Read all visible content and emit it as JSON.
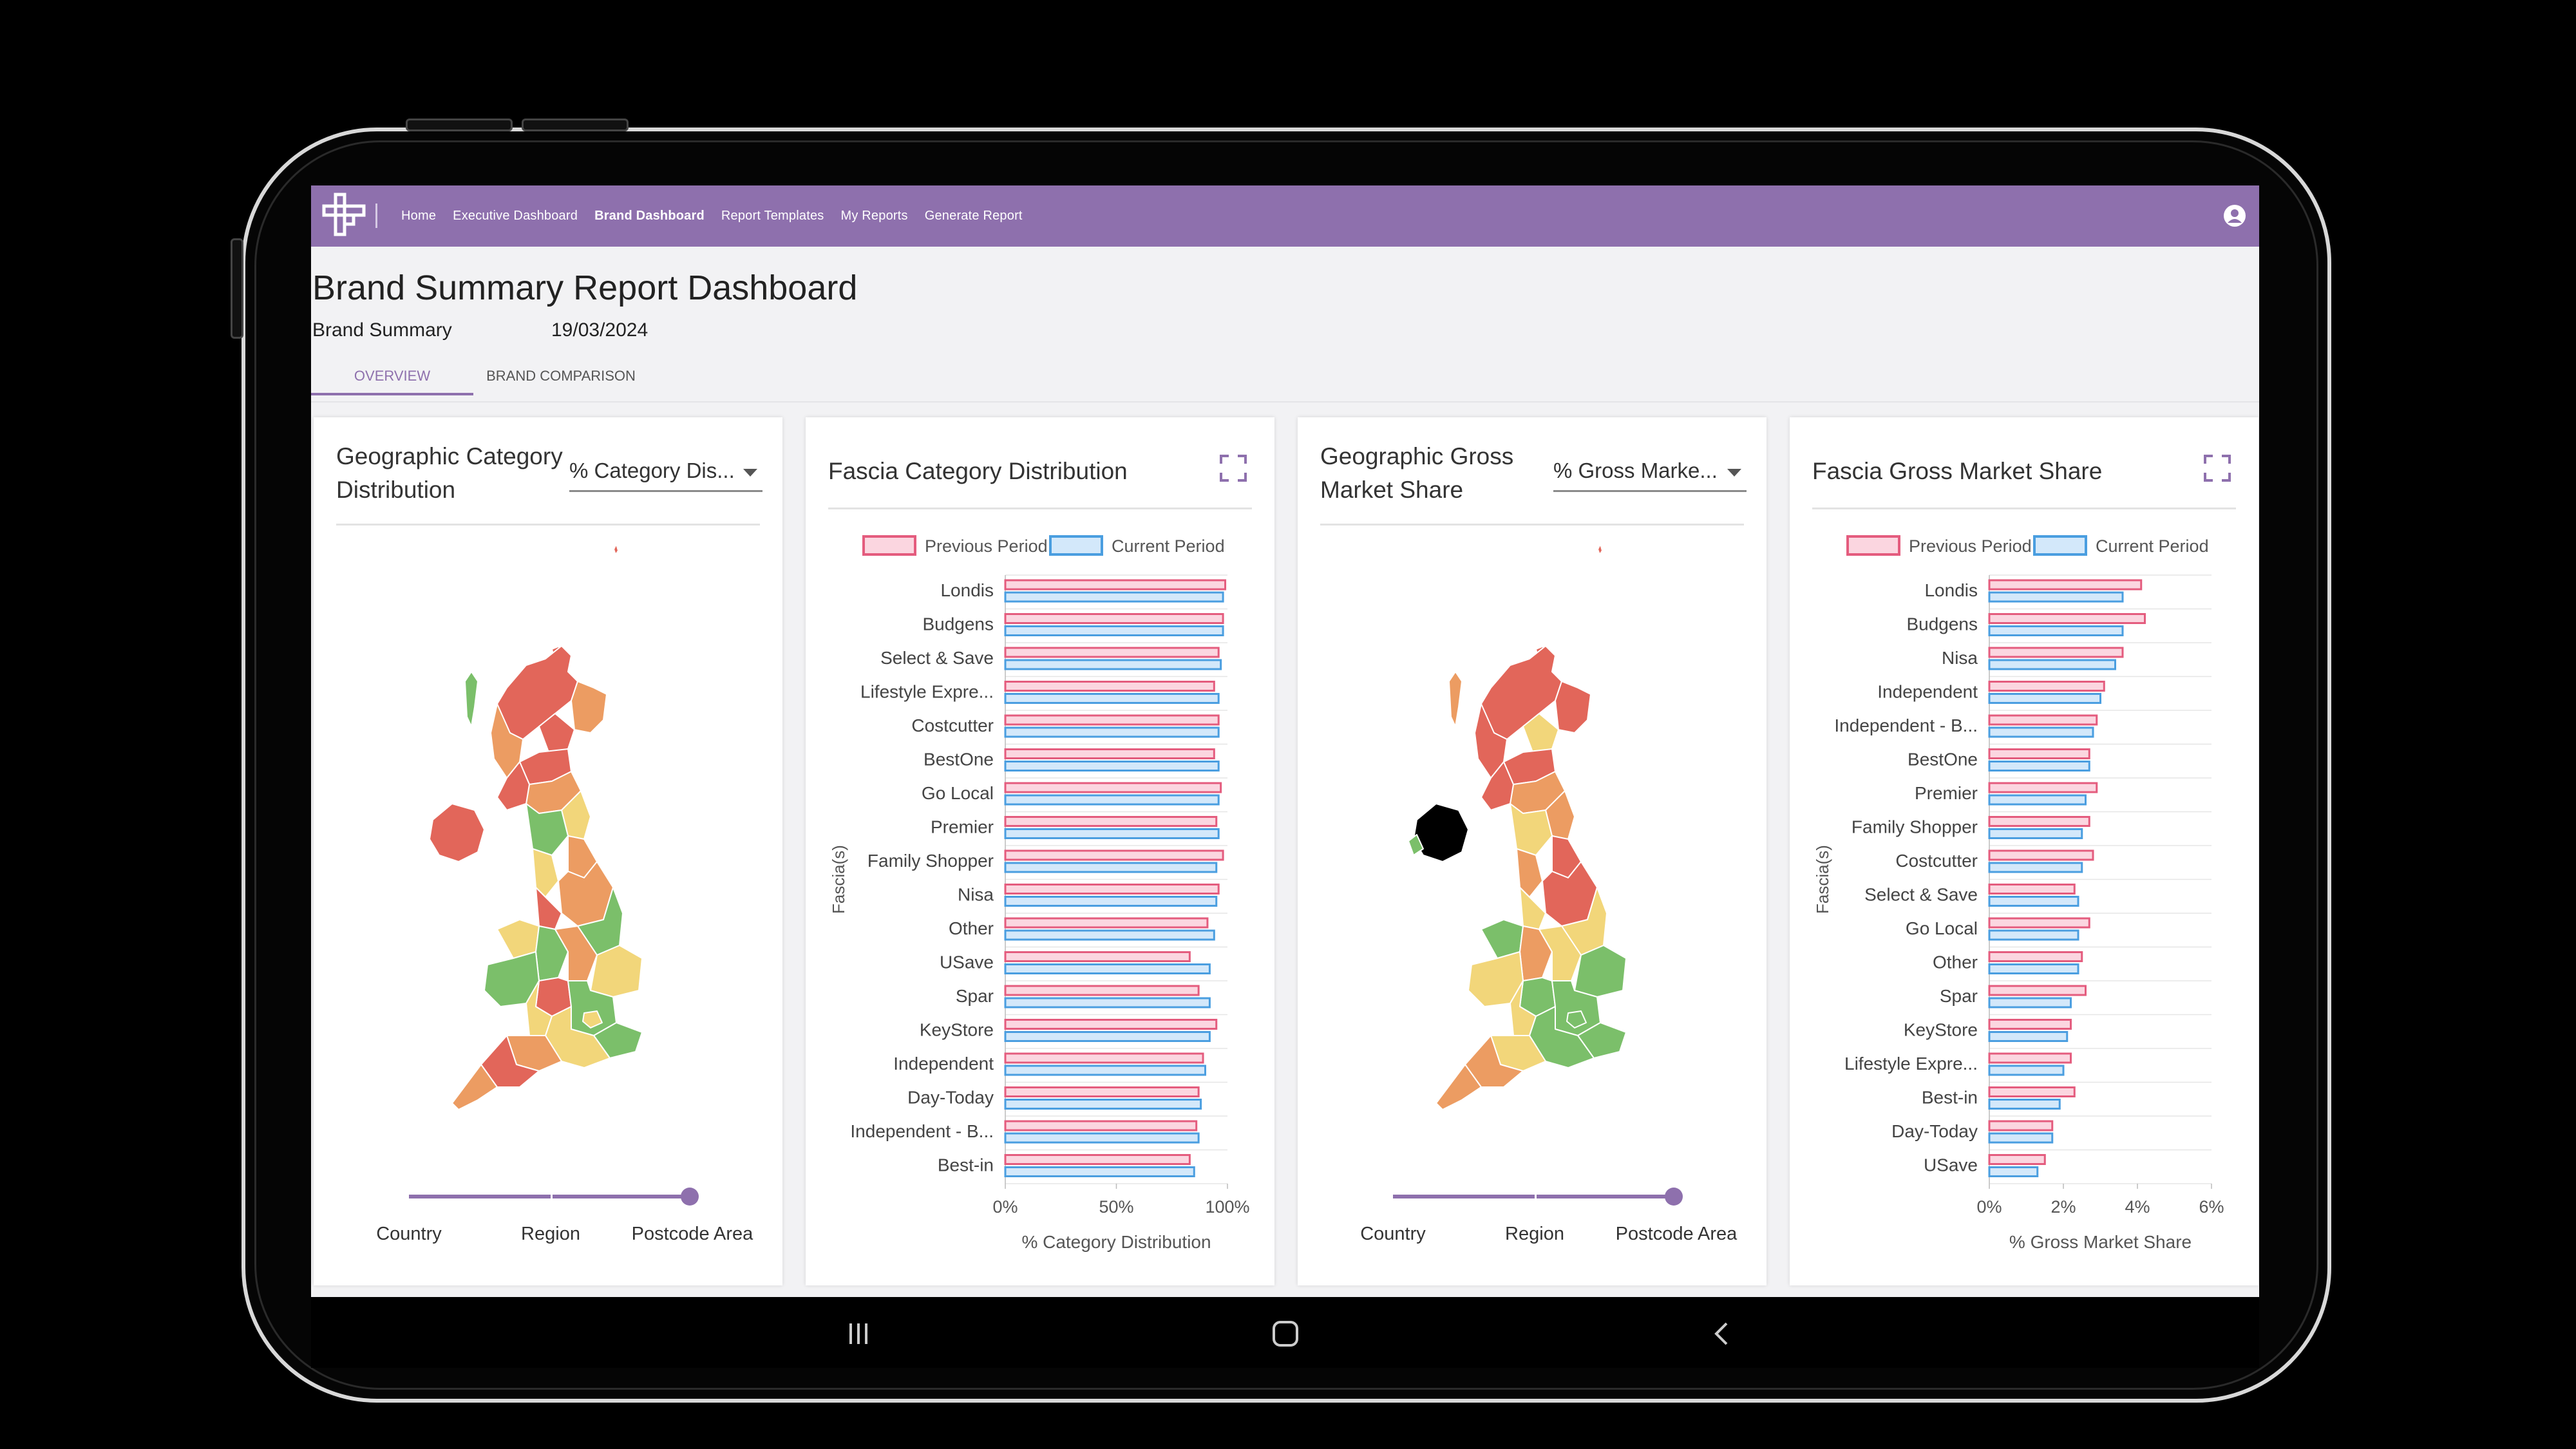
{
  "nav": {
    "links": [
      "Home",
      "Executive Dashboard",
      "Brand Dashboard",
      "Report Templates",
      "My Reports",
      "Generate Report"
    ],
    "active_index": 2
  },
  "page": {
    "title": "Brand Summary Report Dashboard",
    "subtitle_name": "Brand Summary",
    "subtitle_date": "19/03/2024"
  },
  "tabs": [
    "OVERVIEW",
    "BRAND COMPARISON"
  ],
  "cards": {
    "geo_category": {
      "title_line1": "Geographic Category",
      "title_line2": "Distribution",
      "dropdown_value": "% Category Dis...",
      "slider_labels": [
        "Country",
        "Region",
        "Postcode Area"
      ],
      "slider_selected": "Postcode Area"
    },
    "fascia_category": {
      "title": "Fascia Category Distribution"
    },
    "geo_gross": {
      "title_line1": "Geographic Gross",
      "title_line2": "Market Share",
      "dropdown_value": "% Gross Marke...",
      "slider_labels": [
        "Country",
        "Region",
        "Postcode Area"
      ],
      "slider_selected": "Postcode Area"
    },
    "fascia_gross": {
      "title": "Fascia Gross Market Share"
    }
  },
  "colors": {
    "accent": "#8e70ad",
    "previous_period_stroke": "#e45c7e",
    "previous_period_fill": "#fbd6e0",
    "current_period_stroke": "#4a9ee0",
    "current_period_fill": "#d3e8fa",
    "map_red": "#e2665a",
    "map_orange": "#ec9c62",
    "map_yellow": "#f2d67a",
    "map_green": "#7bbf6a"
  },
  "icons": {
    "logo": "cross-logo-icon",
    "user": "user-circle-icon",
    "expand": "expand-icon"
  },
  "chart_data": [
    {
      "type": "bar",
      "orientation": "horizontal",
      "title": "Fascia Category Distribution",
      "xlabel": "% Category Distribution",
      "ylabel": "Fascia(s)",
      "xlim": [
        0,
        100
      ],
      "xticks": [
        "0%",
        "50%",
        "100%"
      ],
      "legend": "top",
      "categories": [
        "Londis",
        "Budgens",
        "Select & Save",
        "Lifestyle Expre...",
        "Costcutter",
        "BestOne",
        "Go Local",
        "Premier",
        "Family Shopper",
        "Nisa",
        "Other",
        "USave",
        "Spar",
        "KeyStore",
        "Independent",
        "Day-Today",
        "Independent - B...",
        "Best-in"
      ],
      "series": [
        {
          "name": "Previous Period",
          "values": [
            99,
            98,
            96,
            94,
            96,
            94,
            97,
            95,
            98,
            96,
            91,
            83,
            87,
            95,
            89,
            87,
            86,
            83
          ]
        },
        {
          "name": "Current Period",
          "values": [
            98,
            98,
            97,
            96,
            96,
            96,
            96,
            96,
            95,
            95,
            94,
            92,
            92,
            92,
            90,
            88,
            87,
            85
          ]
        }
      ]
    },
    {
      "type": "bar",
      "orientation": "horizontal",
      "title": "Fascia Gross Market Share",
      "xlabel": "% Gross Market Share",
      "ylabel": "Fascia(s)",
      "xlim": [
        0,
        6
      ],
      "xticks": [
        "0%",
        "2%",
        "4%",
        "6%"
      ],
      "legend": "top",
      "categories": [
        "Londis",
        "Budgens",
        "Nisa",
        "Independent",
        "Independent - B...",
        "BestOne",
        "Premier",
        "Family Shopper",
        "Costcutter",
        "Select & Save",
        "Go Local",
        "Other",
        "Spar",
        "KeyStore",
        "Lifestyle Expre...",
        "Best-in",
        "Day-Today",
        "USave"
      ],
      "series": [
        {
          "name": "Previous Period",
          "values": [
            4.1,
            4.2,
            3.6,
            3.1,
            2.9,
            2.7,
            2.9,
            2.7,
            2.8,
            2.3,
            2.7,
            2.5,
            2.6,
            2.2,
            2.2,
            2.3,
            1.7,
            1.5
          ]
        },
        {
          "name": "Current Period",
          "values": [
            3.6,
            3.6,
            3.4,
            3.0,
            2.8,
            2.7,
            2.6,
            2.5,
            2.5,
            2.4,
            2.4,
            2.4,
            2.2,
            2.1,
            2.0,
            1.9,
            1.7,
            1.3
          ]
        }
      ]
    }
  ]
}
